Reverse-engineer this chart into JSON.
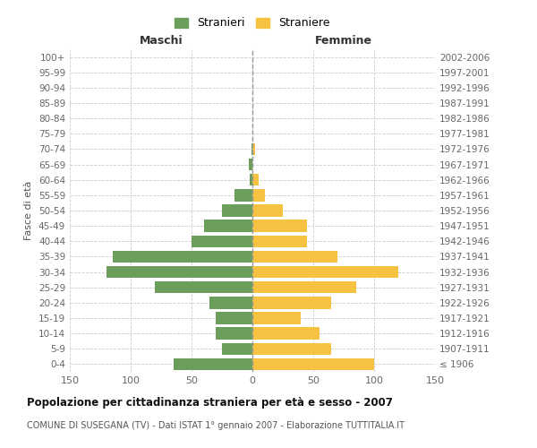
{
  "age_groups": [
    "0-4",
    "5-9",
    "10-14",
    "15-19",
    "20-24",
    "25-29",
    "30-34",
    "35-39",
    "40-44",
    "45-49",
    "50-54",
    "55-59",
    "60-64",
    "65-69",
    "70-74",
    "75-79",
    "80-84",
    "85-89",
    "90-94",
    "95-99",
    "100+"
  ],
  "birth_years": [
    "2002-2006",
    "1997-2001",
    "1992-1996",
    "1987-1991",
    "1982-1986",
    "1977-1981",
    "1972-1976",
    "1967-1971",
    "1962-1966",
    "1957-1961",
    "1952-1956",
    "1947-1951",
    "1942-1946",
    "1937-1941",
    "1932-1936",
    "1927-1931",
    "1922-1926",
    "1917-1921",
    "1912-1916",
    "1907-1911",
    "≤ 1906"
  ],
  "maschi": [
    65,
    25,
    30,
    30,
    35,
    80,
    120,
    115,
    50,
    40,
    25,
    15,
    2,
    3,
    1,
    0,
    0,
    0,
    0,
    0,
    0
  ],
  "femmine": [
    100,
    65,
    55,
    40,
    65,
    85,
    120,
    70,
    45,
    45,
    25,
    10,
    5,
    0,
    2,
    0,
    0,
    0,
    0,
    0,
    0
  ],
  "maschi_color": "#6a9e5a",
  "femmine_color": "#f5c242",
  "xlabel_left": "Maschi",
  "xlabel_right": "Femmine",
  "ylabel_left": "Fasce di età",
  "legend_maschi": "Stranieri",
  "legend_femmine": "Straniere",
  "title": "Popolazione per cittadinanza straniera per età e sesso - 2007",
  "subtitle": "COMUNE DI SUSEGANA (TV) - Dati ISTAT 1° gennaio 2007 - Elaborazione TUTTITALIA.IT",
  "xlim": 150,
  "background_color": "#ffffff",
  "grid_color": "#cccccc"
}
